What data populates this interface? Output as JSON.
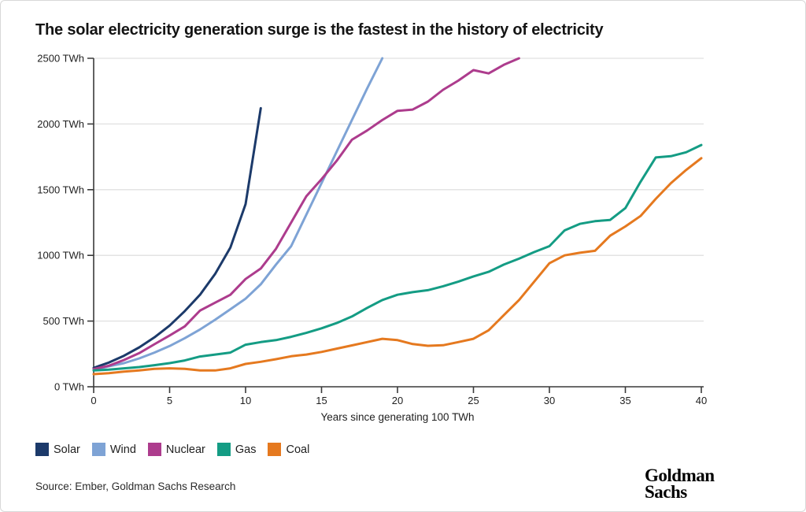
{
  "header": {
    "title": "The solar electricity generation surge is the fastest in the history of electricity"
  },
  "chart_data": {
    "type": "line",
    "title": "The solar electricity generation surge is the fastest in the history of electricity",
    "xlabel": "Years since generating 100 TWh",
    "ylabel": "TWh",
    "xlim": [
      0,
      40
    ],
    "ylim": [
      0,
      2500
    ],
    "x_ticks": [
      0,
      5,
      10,
      15,
      20,
      25,
      30,
      35,
      40
    ],
    "y_ticks": [
      0,
      500,
      1000,
      1500,
      2000,
      2500
    ],
    "y_tick_labels": [
      "0 TWh",
      "500 TWh",
      "1000 TWh",
      "1500 TWh",
      "2000 TWh",
      "2500 TWh"
    ],
    "grid": "horizontal",
    "legend_position": "bottom-left",
    "series": [
      {
        "name": "Solar",
        "color": "#1c3a6a",
        "x_start": 0,
        "values": [
          144,
          184,
          236,
          300,
          376,
          466,
          576,
          700,
          860,
          1060,
          1390,
          2120
        ]
      },
      {
        "name": "Wind",
        "color": "#7ea3d5",
        "x_start": 0,
        "values": [
          128,
          156,
          180,
          216,
          260,
          310,
          370,
          436,
          510,
          590,
          670,
          780,
          930,
          1070,
          1310,
          1550,
          1790,
          2030,
          2270,
          2500
        ]
      },
      {
        "name": "Nuclear",
        "color": "#ad3c8d",
        "x_start": 0,
        "values": [
          134,
          160,
          204,
          256,
          324,
          390,
          460,
          580,
          640,
          700,
          820,
          900,
          1050,
          1250,
          1450,
          1580,
          1720,
          1880,
          1950,
          2030,
          2100,
          2110,
          2170,
          2260,
          2330,
          2410,
          2385,
          2450,
          2500
        ]
      },
      {
        "name": "Gas",
        "color": "#149c84",
        "x_start": 0,
        "values": [
          124,
          130,
          140,
          150,
          164,
          180,
          200,
          230,
          245,
          260,
          320,
          340,
          355,
          380,
          410,
          445,
          485,
          535,
          600,
          660,
          700,
          720,
          735,
          765,
          800,
          840,
          875,
          930,
          975,
          1025,
          1070,
          1190,
          1240,
          1260,
          1270,
          1360,
          1560,
          1745,
          1755,
          1785,
          1840
        ]
      },
      {
        "name": "Coal",
        "color": "#e5791f",
        "x_start": 0,
        "values": [
          96,
          104,
          116,
          124,
          136,
          140,
          136,
          124,
          124,
          140,
          174,
          190,
          210,
          232,
          245,
          265,
          290,
          315,
          340,
          365,
          355,
          325,
          312,
          316,
          340,
          365,
          430,
          545,
          660,
          800,
          940,
          1000,
          1020,
          1035,
          1150,
          1220,
          1300,
          1430,
          1550,
          1650,
          1740
        ]
      }
    ]
  },
  "footer": {
    "source": "Source: Ember, Goldman Sachs Research",
    "logo": {
      "line1": "Goldman",
      "line2": "Sachs"
    }
  }
}
